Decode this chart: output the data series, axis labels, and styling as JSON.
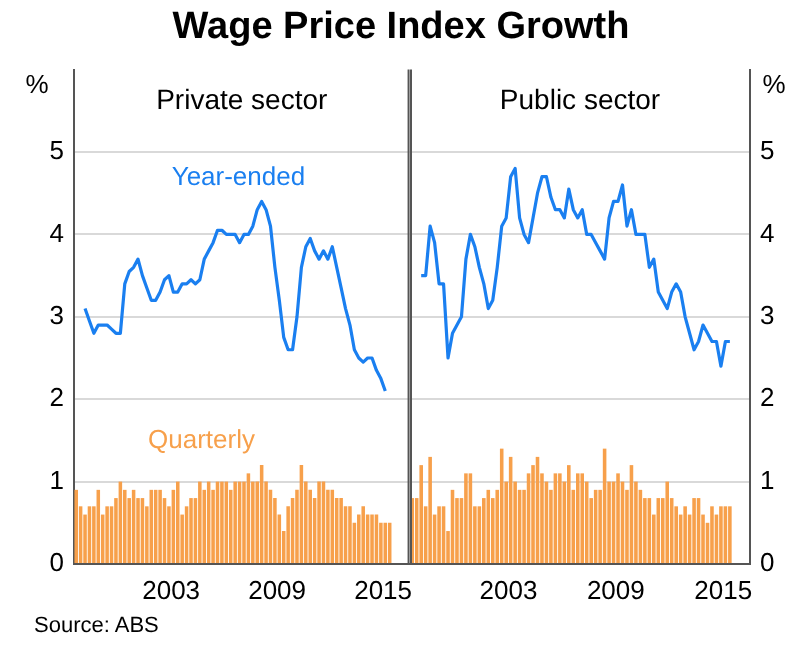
{
  "chart_data": [
    {
      "type": "bar",
      "title": "Wage Price Index Growth",
      "subtitle": "Private sector",
      "ylabel": "%",
      "annotations": [
        "Source: ABS"
      ],
      "x": [
        1997.625,
        1997.875,
        1998.125,
        1998.375,
        1998.625,
        1998.875,
        1999.125,
        1999.375,
        1999.625,
        1999.875,
        2000.125,
        2000.375,
        2000.625,
        2000.875,
        2001.125,
        2001.375,
        2001.625,
        2001.875,
        2002.125,
        2002.375,
        2002.625,
        2002.875,
        2003.125,
        2003.375,
        2003.625,
        2003.875,
        2004.125,
        2004.375,
        2004.625,
        2004.875,
        2005.125,
        2005.375,
        2005.625,
        2005.875,
        2006.125,
        2006.375,
        2006.625,
        2006.875,
        2007.125,
        2007.375,
        2007.625,
        2007.875,
        2008.125,
        2008.375,
        2008.625,
        2008.875,
        2009.125,
        2009.375,
        2009.625,
        2009.875,
        2010.125,
        2010.375,
        2010.625,
        2010.875,
        2011.125,
        2011.375,
        2011.625,
        2011.875,
        2012.125,
        2012.375,
        2012.625,
        2012.875,
        2013.125,
        2013.375,
        2013.625,
        2013.875,
        2014.125,
        2014.375,
        2014.625,
        2014.875,
        2015.125,
        2015.375
      ],
      "series": [
        {
          "name": "Quarterly",
          "color": "#f7a04b",
          "values": [
            0.9,
            0.7,
            0.6,
            0.7,
            0.7,
            0.9,
            0.6,
            0.7,
            0.7,
            0.8,
            1.0,
            0.9,
            0.8,
            0.9,
            0.8,
            0.8,
            0.7,
            0.9,
            0.9,
            0.9,
            0.8,
            0.7,
            0.9,
            1.0,
            0.6,
            0.7,
            0.8,
            0.8,
            1.0,
            0.9,
            1.0,
            0.9,
            1.0,
            1.0,
            1.0,
            0.9,
            1.0,
            1.0,
            1.0,
            1.1,
            1.0,
            1.0,
            1.2,
            1.0,
            0.9,
            0.8,
            0.6,
            0.4,
            0.7,
            0.8,
            0.9,
            1.2,
            1.0,
            0.9,
            0.8,
            1.0,
            1.0,
            0.9,
            0.9,
            0.8,
            0.8,
            0.7,
            0.7,
            0.5,
            0.6,
            0.7,
            0.6,
            0.6,
            0.6,
            0.5,
            0.5,
            0.5
          ]
        },
        {
          "name": "Year-ended",
          "type": "line",
          "color": "#1a7ff0",
          "values": [
            null,
            null,
            3.1,
            2.95,
            2.8,
            2.9,
            2.9,
            2.9,
            2.85,
            2.8,
            2.8,
            3.4,
            3.55,
            3.6,
            3.7,
            3.5,
            3.35,
            3.2,
            3.2,
            3.3,
            3.45,
            3.5,
            3.3,
            3.3,
            3.4,
            3.4,
            3.45,
            3.4,
            3.45,
            3.7,
            3.8,
            3.9,
            4.05,
            4.05,
            4.0,
            4.0,
            4.0,
            3.9,
            4.0,
            4.0,
            4.1,
            4.3,
            4.4,
            4.3,
            4.1,
            3.6,
            3.2,
            2.75,
            2.6,
            2.6,
            3.0,
            3.6,
            3.85,
            3.95,
            3.8,
            3.7,
            3.8,
            3.7,
            3.85,
            3.6,
            3.35,
            3.1,
            2.9,
            2.6,
            2.5,
            2.45,
            2.5,
            2.5,
            2.35,
            2.25,
            2.1,
            null
          ]
        }
      ],
      "xlim": [
        1997.5,
        2016.5
      ],
      "xticks": [
        2003,
        2009,
        2015
      ],
      "ylim": [
        0,
        6
      ],
      "yticks": [
        0,
        1,
        2,
        3,
        4,
        5
      ],
      "grid": "y"
    },
    {
      "type": "bar",
      "subtitle": "Public sector",
      "ylabel": "%",
      "x": [
        1997.625,
        1997.875,
        1998.125,
        1998.375,
        1998.625,
        1998.875,
        1999.125,
        1999.375,
        1999.625,
        1999.875,
        2000.125,
        2000.375,
        2000.625,
        2000.875,
        2001.125,
        2001.375,
        2001.625,
        2001.875,
        2002.125,
        2002.375,
        2002.625,
        2002.875,
        2003.125,
        2003.375,
        2003.625,
        2003.875,
        2004.125,
        2004.375,
        2004.625,
        2004.875,
        2005.125,
        2005.375,
        2005.625,
        2005.875,
        2006.125,
        2006.375,
        2006.625,
        2006.875,
        2007.125,
        2007.375,
        2007.625,
        2007.875,
        2008.125,
        2008.375,
        2008.625,
        2008.875,
        2009.125,
        2009.375,
        2009.625,
        2009.875,
        2010.125,
        2010.375,
        2010.625,
        2010.875,
        2011.125,
        2011.375,
        2011.625,
        2011.875,
        2012.125,
        2012.375,
        2012.625,
        2012.875,
        2013.125,
        2013.375,
        2013.625,
        2013.875,
        2014.125,
        2014.375,
        2014.625,
        2014.875,
        2015.125,
        2015.375
      ],
      "series": [
        {
          "color": "#f7a04b",
          "values": [
            0.8,
            0.8,
            1.2,
            0.7,
            1.3,
            0.6,
            0.7,
            0.7,
            0.4,
            0.9,
            0.8,
            0.8,
            1.1,
            1.1,
            0.7,
            0.7,
            0.8,
            0.9,
            0.8,
            0.9,
            1.4,
            1.0,
            1.3,
            1.0,
            0.9,
            0.9,
            1.1,
            1.2,
            1.3,
            1.1,
            1.0,
            0.9,
            1.1,
            1.1,
            1.0,
            1.2,
            0.9,
            1.1,
            1.1,
            1.0,
            0.8,
            0.9,
            0.9,
            1.4,
            1.0,
            1.0,
            1.1,
            1.0,
            0.9,
            1.2,
            1.0,
            0.9,
            0.8,
            0.8,
            0.6,
            0.8,
            0.8,
            1.0,
            0.8,
            0.7,
            0.6,
            0.7,
            0.6,
            0.8,
            0.8,
            0.6,
            0.5,
            0.7,
            0.6,
            0.7,
            0.7,
            0.7
          ]
        },
        {
          "type": "line",
          "color": "#1a7ff0",
          "values": [
            null,
            null,
            3.5,
            3.5,
            4.1,
            3.9,
            3.4,
            3.4,
            2.5,
            2.8,
            2.9,
            3.0,
            3.7,
            4.0,
            3.85,
            3.6,
            3.4,
            3.1,
            3.2,
            3.6,
            4.1,
            4.2,
            4.7,
            4.8,
            4.2,
            4.0,
            3.9,
            4.2,
            4.5,
            4.7,
            4.7,
            4.45,
            4.3,
            4.3,
            4.2,
            4.55,
            4.3,
            4.2,
            4.3,
            4.0,
            4.0,
            3.9,
            3.8,
            3.7,
            4.2,
            4.4,
            4.4,
            4.6,
            4.1,
            4.3,
            4.0,
            4.0,
            4.0,
            3.6,
            3.7,
            3.3,
            3.2,
            3.1,
            3.3,
            3.4,
            3.3,
            3.0,
            2.8,
            2.6,
            2.7,
            2.9,
            2.8,
            2.7,
            2.7,
            2.4,
            2.7,
            2.7
          ]
        }
      ],
      "xlim": [
        1997.5,
        2016.5
      ],
      "xticks": [
        2003,
        2009,
        2015
      ],
      "ylim": [
        0,
        6
      ],
      "yticks": [
        0,
        1,
        2,
        3,
        4,
        5
      ],
      "grid": "y"
    }
  ]
}
